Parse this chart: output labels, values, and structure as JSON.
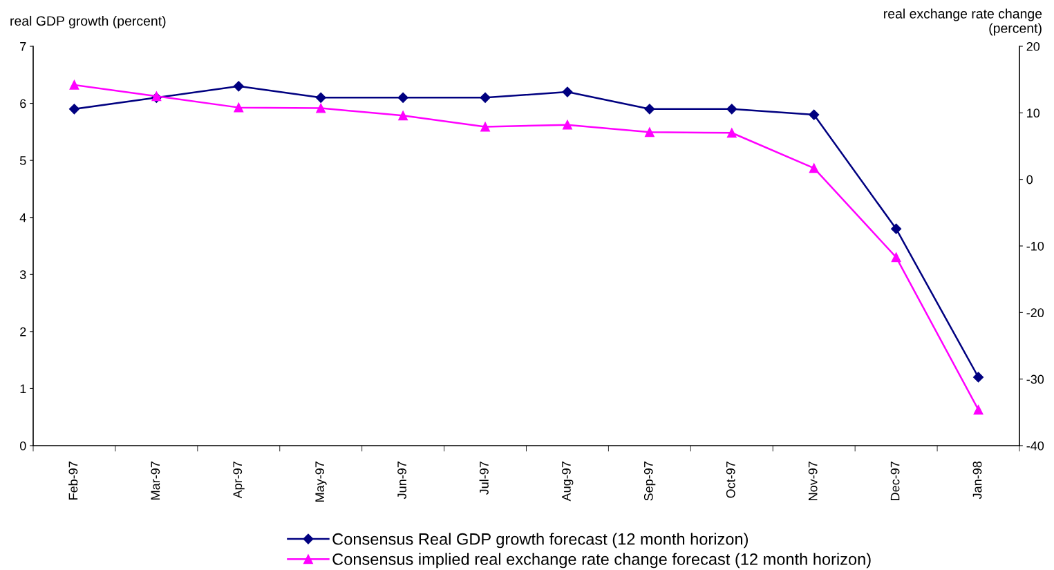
{
  "chart_data": {
    "type": "line",
    "ylabel": "real GDP growth (percent)",
    "y2label": "real exchange rate change\n(percent)",
    "categories": [
      "Feb-97",
      "Mar-97",
      "Apr-97",
      "May-97",
      "Jun-97",
      "Jul-97",
      "Aug-97",
      "Sep-97",
      "Oct-97",
      "Nov-97",
      "Dec-97",
      "Jan-98"
    ],
    "series": [
      {
        "name": "Consensus Real GDP growth forecast (12 month horizon)",
        "color": "#000080",
        "marker": "diamond",
        "values": [
          5.9,
          6.1,
          6.3,
          6.1,
          6.1,
          6.1,
          6.2,
          5.9,
          5.9,
          5.8,
          3.8,
          1.2
        ]
      },
      {
        "name": "Consensus implied real exchange rate change forecast (12 month horizon)",
        "color": "#ff00ff",
        "marker": "triangle",
        "axis": "y2",
        "values": [
          14.2,
          12.5,
          10.8,
          10.7,
          9.6,
          7.9,
          8.2,
          7.1,
          7.0,
          1.7,
          -11.7,
          -34.6
        ]
      }
    ],
    "ylim": [
      0,
      7
    ],
    "yticks": [
      0,
      1,
      2,
      3,
      4,
      5,
      6,
      7
    ],
    "y2lim": [
      -40,
      20
    ],
    "y2ticks": [
      -40,
      -30,
      -20,
      -10,
      0,
      10,
      20
    ],
    "grid": false,
    "legend": "bottom",
    "line_style": "solid"
  }
}
